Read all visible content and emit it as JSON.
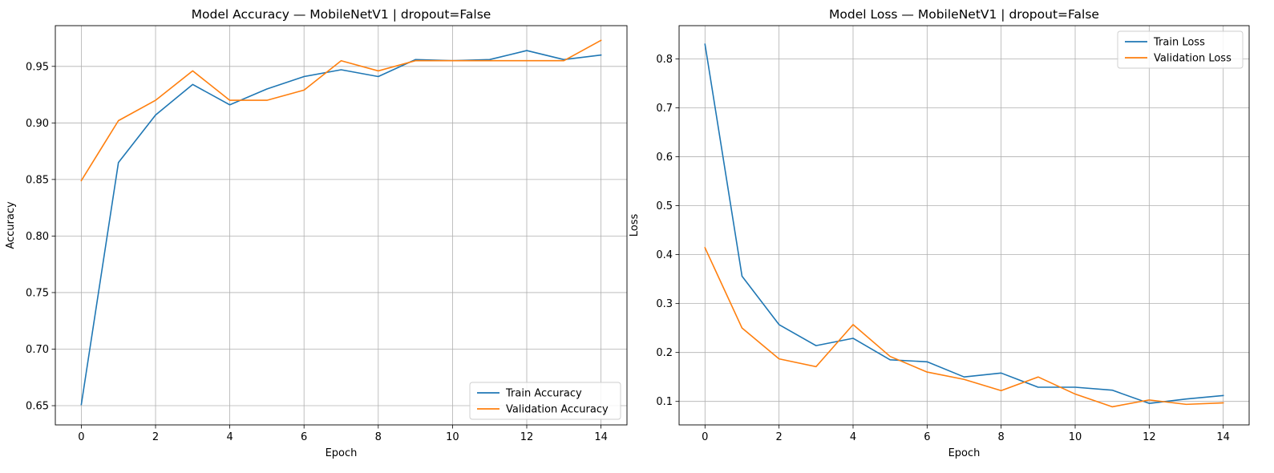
{
  "colors": {
    "train": "#1f77b4",
    "validation": "#ff7f0e",
    "grid": "#b0b0b0"
  },
  "chart_data": [
    {
      "type": "line",
      "title": "Model Accuracy — MobileNetV1 | dropout=False",
      "xlabel": "Epoch",
      "ylabel": "Accuracy",
      "x": [
        0,
        1,
        2,
        3,
        4,
        5,
        6,
        7,
        8,
        9,
        10,
        11,
        12,
        13,
        14
      ],
      "xlim": [
        -0.7,
        14.7
      ],
      "ylim": [
        0.633,
        0.986
      ],
      "xticks": [
        0,
        2,
        4,
        6,
        8,
        10,
        12,
        14
      ],
      "yticks": [
        0.65,
        0.7,
        0.75,
        0.8,
        0.85,
        0.9,
        0.95
      ],
      "ytick_decimals": 2,
      "grid": true,
      "legend_position": "lower-right",
      "series": [
        {
          "name": "Train Accuracy",
          "color": "#1f77b4",
          "values": [
            0.651,
            0.865,
            0.907,
            0.934,
            0.916,
            0.93,
            0.941,
            0.947,
            0.941,
            0.956,
            0.955,
            0.956,
            0.964,
            0.956,
            0.96
          ]
        },
        {
          "name": "Validation Accuracy",
          "color": "#ff7f0e",
          "values": [
            0.849,
            0.902,
            0.92,
            0.946,
            0.92,
            0.92,
            0.929,
            0.955,
            0.946,
            0.955,
            0.955,
            0.955,
            0.955,
            0.955,
            0.973
          ]
        }
      ]
    },
    {
      "type": "line",
      "title": "Model Loss — MobileNetV1 | dropout=False",
      "xlabel": "Epoch",
      "ylabel": "Loss",
      "x": [
        0,
        1,
        2,
        3,
        4,
        5,
        6,
        7,
        8,
        9,
        10,
        11,
        12,
        13,
        14
      ],
      "xlim": [
        -0.7,
        14.7
      ],
      "ylim": [
        0.052,
        0.868
      ],
      "xticks": [
        0,
        2,
        4,
        6,
        8,
        10,
        12,
        14
      ],
      "yticks": [
        0.1,
        0.2,
        0.3,
        0.4,
        0.5,
        0.6,
        0.7,
        0.8
      ],
      "ytick_decimals": 1,
      "grid": true,
      "legend_position": "upper-right",
      "series": [
        {
          "name": "Train Loss",
          "color": "#1f77b4",
          "values": [
            0.83,
            0.356,
            0.257,
            0.214,
            0.229,
            0.185,
            0.181,
            0.15,
            0.158,
            0.129,
            0.129,
            0.123,
            0.096,
            0.105,
            0.112
          ]
        },
        {
          "name": "Validation Loss",
          "color": "#ff7f0e",
          "values": [
            0.414,
            0.25,
            0.187,
            0.171,
            0.257,
            0.192,
            0.16,
            0.145,
            0.122,
            0.15,
            0.115,
            0.089,
            0.103,
            0.094,
            0.097
          ]
        }
      ]
    }
  ]
}
